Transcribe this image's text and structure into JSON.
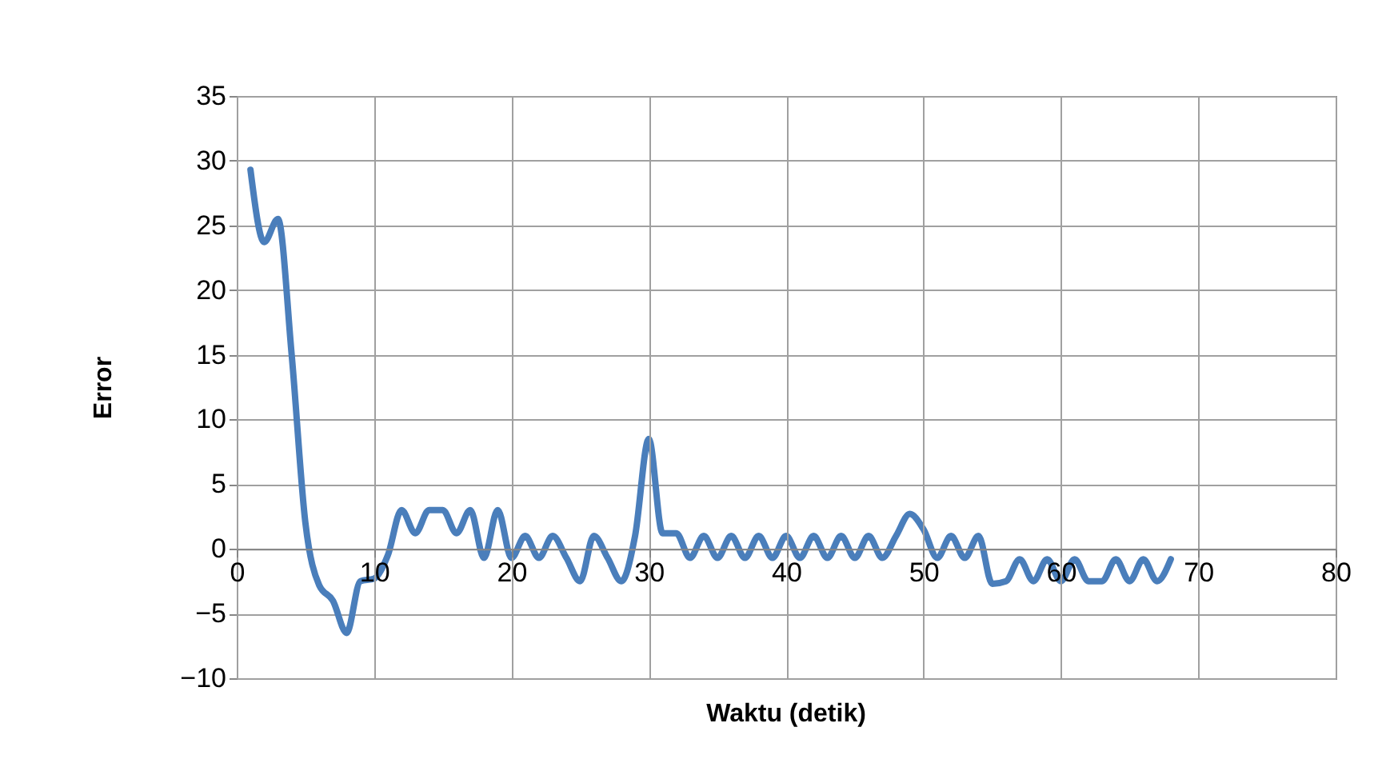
{
  "chart_data": {
    "type": "line",
    "xlabel": "Waktu (detik)",
    "ylabel": "Error",
    "x": [
      1,
      2,
      3,
      4,
      5,
      6,
      7,
      8,
      9,
      10,
      11,
      12,
      13,
      14,
      15,
      16,
      17,
      18,
      19,
      20,
      21,
      22,
      23,
      24,
      25,
      26,
      27,
      28,
      29,
      30,
      31,
      32,
      33,
      34,
      35,
      36,
      37,
      38,
      39,
      40,
      41,
      42,
      43,
      44,
      45,
      46,
      47,
      48,
      49,
      50,
      51,
      52,
      53,
      54,
      55,
      56,
      57,
      58,
      59,
      60,
      61,
      62,
      63,
      64,
      65,
      66,
      67,
      68
    ],
    "series": [
      {
        "color": "#4a7ebb",
        "values": [
          29.3,
          23.7,
          25.5,
          15,
          2,
          -2.8,
          -4,
          -6.5,
          -2.5,
          -2.3,
          -0.5,
          3,
          1.2,
          3,
          3,
          1.2,
          3,
          -0.7,
          3,
          -0.7,
          1,
          -0.7,
          1,
          -0.7,
          -2.5,
          1,
          -0.7,
          -2.5,
          1,
          8.5,
          1.2,
          1.2,
          -0.7,
          1,
          -0.7,
          1,
          -0.7,
          1,
          -0.7,
          1,
          -0.7,
          1,
          -0.7,
          1,
          -0.7,
          1,
          -0.7,
          1,
          2.7,
          1.5,
          -0.7,
          1,
          -0.7,
          1,
          -2.7,
          -2.5,
          -0.8,
          -2.5,
          -0.8,
          -2.5,
          -0.8,
          -2.5,
          -2.5,
          -0.8,
          -2.5,
          -0.8,
          -2.5,
          -0.8
        ]
      }
    ],
    "xlim": [
      0,
      80
    ],
    "xticks": [
      0,
      10,
      20,
      30,
      40,
      50,
      60,
      70,
      80
    ],
    "ylim": [
      -10,
      35
    ],
    "yticks": [
      -10,
      -5,
      0,
      5,
      10,
      15,
      20,
      25,
      30,
      35
    ],
    "grid": true,
    "legend": false,
    "marker": "none",
    "line_style": "solid"
  }
}
